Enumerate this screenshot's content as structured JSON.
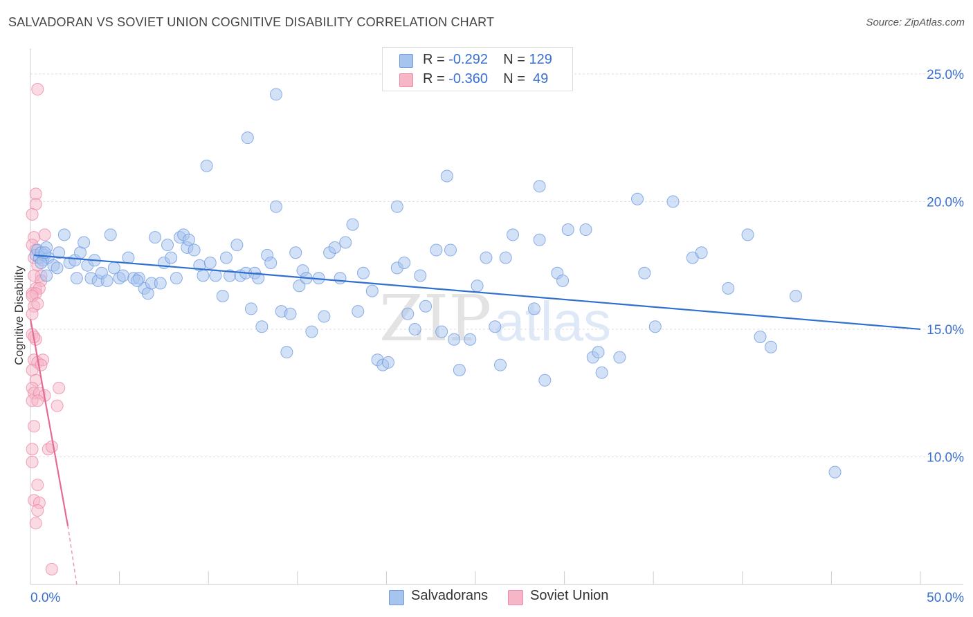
{
  "title": "SALVADORAN VS SOVIET UNION COGNITIVE DISABILITY CORRELATION CHART",
  "source": "Source: ZipAtlas.com",
  "watermark": {
    "zip": "ZIP",
    "atlas": "atlas"
  },
  "legend": {
    "rows": [
      {
        "r_label": "R = ",
        "r_value": "-0.292",
        "n_label": "N = ",
        "n_value": "129",
        "color": "#a7c4ef",
        "border": "#6f9be0"
      },
      {
        "r_label": "R = ",
        "r_value": "-0.360",
        "n_label": "N = ",
        "n_value": " 49",
        "color": "#f6b6c8",
        "border": "#ec8aa7"
      }
    ]
  },
  "colors": {
    "blue_fill": "#a7c4ef",
    "blue_stroke": "#6f9be0",
    "blue_line": "#2f6fd0",
    "pink_fill": "#f6b6c8",
    "pink_stroke": "#ec8aa7",
    "pink_line": "#e46b96",
    "tick_label": "#3a6fd0",
    "grid": "#dddddd"
  },
  "chart_data": {
    "type": "scatter",
    "title": "SALVADORAN VS SOVIET UNION COGNITIVE DISABILITY CORRELATION CHART",
    "xlabel": "",
    "ylabel": "Cognitive Disability",
    "xlim": [
      0,
      50
    ],
    "ylim": [
      5,
      26
    ],
    "x_tick_labels": [
      "0.0%",
      "50.0%"
    ],
    "y_ticks": [
      10,
      15,
      20,
      25
    ],
    "y_tick_labels": [
      "10.0%",
      "15.0%",
      "20.0%",
      "25.0%"
    ],
    "grid": true,
    "legend_position": "top-center",
    "series": [
      {
        "name": "Salvadorans",
        "r": -0.292,
        "n": 129,
        "trend": {
          "x": [
            0.2,
            50
          ],
          "y": [
            17.9,
            15.0
          ]
        },
        "points": [
          [
            0.3,
            17.9
          ],
          [
            0.4,
            18.1
          ],
          [
            0.5,
            17.8
          ],
          [
            0.6,
            18.0
          ],
          [
            0.7,
            17.7
          ],
          [
            0.8,
            17.9
          ],
          [
            0.9,
            17.1
          ],
          [
            1.0,
            17.8
          ],
          [
            1.3,
            17.5
          ],
          [
            1.6,
            18.0
          ],
          [
            1.9,
            18.7
          ],
          [
            2.2,
            17.6
          ],
          [
            2.5,
            17.7
          ],
          [
            2.6,
            17.0
          ],
          [
            2.8,
            18.0
          ],
          [
            3.0,
            18.4
          ],
          [
            3.2,
            17.5
          ],
          [
            3.4,
            17.0
          ],
          [
            3.6,
            17.7
          ],
          [
            3.8,
            16.9
          ],
          [
            4.0,
            17.2
          ],
          [
            4.3,
            16.9
          ],
          [
            4.5,
            18.7
          ],
          [
            4.7,
            17.4
          ],
          [
            5.0,
            17.0
          ],
          [
            5.2,
            17.1
          ],
          [
            5.5,
            17.8
          ],
          [
            5.8,
            17.0
          ],
          [
            6.1,
            17.0
          ],
          [
            6.4,
            16.6
          ],
          [
            6.6,
            16.4
          ],
          [
            6.8,
            16.8
          ],
          [
            7.0,
            18.6
          ],
          [
            7.3,
            16.8
          ],
          [
            7.5,
            17.6
          ],
          [
            7.7,
            18.3
          ],
          [
            7.9,
            17.8
          ],
          [
            8.2,
            17.0
          ],
          [
            8.4,
            18.6
          ],
          [
            8.6,
            18.7
          ],
          [
            8.8,
            18.2
          ],
          [
            8.9,
            18.5
          ],
          [
            9.2,
            18.1
          ],
          [
            9.5,
            17.5
          ],
          [
            9.7,
            17.1
          ],
          [
            10.1,
            17.6
          ],
          [
            10.4,
            17.1
          ],
          [
            10.8,
            16.3
          ],
          [
            11.0,
            17.8
          ],
          [
            11.2,
            17.1
          ],
          [
            11.6,
            18.3
          ],
          [
            11.8,
            17.1
          ],
          [
            12.1,
            17.2
          ],
          [
            12.4,
            15.8
          ],
          [
            12.6,
            17.2
          ],
          [
            12.8,
            17.0
          ],
          [
            13.0,
            15.1
          ],
          [
            13.3,
            17.9
          ],
          [
            13.5,
            17.6
          ],
          [
            13.8,
            19.8
          ],
          [
            14.1,
            15.7
          ],
          [
            14.4,
            14.1
          ],
          [
            14.6,
            15.6
          ],
          [
            14.9,
            18.0
          ],
          [
            15.1,
            16.7
          ],
          [
            15.3,
            17.3
          ],
          [
            15.5,
            17.0
          ],
          [
            15.8,
            14.9
          ],
          [
            16.2,
            17.0
          ],
          [
            16.5,
            15.5
          ],
          [
            16.8,
            18.0
          ],
          [
            17.1,
            18.2
          ],
          [
            17.4,
            17.0
          ],
          [
            17.7,
            18.4
          ],
          [
            18.1,
            19.1
          ],
          [
            18.4,
            15.7
          ],
          [
            18.7,
            17.2
          ],
          [
            19.2,
            16.5
          ],
          [
            19.5,
            13.8
          ],
          [
            19.8,
            13.6
          ],
          [
            20.1,
            13.7
          ],
          [
            20.6,
            17.4
          ],
          [
            21.0,
            17.6
          ],
          [
            21.2,
            15.6
          ],
          [
            21.6,
            15.0
          ],
          [
            21.9,
            17.1
          ],
          [
            22.2,
            15.9
          ],
          [
            22.8,
            18.1
          ],
          [
            23.1,
            14.9
          ],
          [
            23.6,
            18.1
          ],
          [
            23.8,
            14.6
          ],
          [
            24.1,
            13.4
          ],
          [
            24.7,
            14.6
          ],
          [
            25.1,
            16.7
          ],
          [
            25.6,
            17.8
          ],
          [
            26.1,
            15.1
          ],
          [
            26.4,
            13.6
          ],
          [
            26.7,
            17.8
          ],
          [
            27.1,
            18.7
          ],
          [
            28.3,
            15.8
          ],
          [
            28.6,
            18.5
          ],
          [
            28.9,
            13.0
          ],
          [
            29.6,
            17.2
          ],
          [
            29.9,
            16.9
          ],
          [
            30.2,
            18.9
          ],
          [
            31.2,
            18.9
          ],
          [
            31.6,
            13.9
          ],
          [
            31.9,
            14.1
          ],
          [
            32.1,
            13.3
          ],
          [
            33.1,
            13.9
          ],
          [
            34.1,
            20.1
          ],
          [
            34.5,
            17.2
          ],
          [
            35.1,
            15.1
          ],
          [
            36.1,
            20.0
          ],
          [
            37.2,
            17.8
          ],
          [
            37.7,
            18.0
          ],
          [
            39.2,
            16.6
          ],
          [
            40.3,
            18.7
          ],
          [
            41.0,
            14.7
          ],
          [
            41.6,
            14.3
          ],
          [
            43.0,
            16.3
          ],
          [
            45.2,
            9.4
          ],
          [
            0.9,
            18.2
          ],
          [
            0.6,
            17.6
          ],
          [
            6.0,
            16.9
          ],
          [
            9.9,
            21.4
          ],
          [
            12.2,
            22.5
          ],
          [
            13.8,
            24.2
          ],
          [
            20.6,
            19.8
          ],
          [
            23.4,
            21.0
          ],
          [
            28.6,
            20.6
          ],
          [
            0.8,
            18.0
          ],
          [
            1.5,
            17.4
          ]
        ]
      },
      {
        "name": "Soviet Union",
        "r": -0.36,
        "n": 49,
        "trend": {
          "x": [
            0.0,
            2.1
          ],
          "y": [
            15.4,
            7.3
          ]
        },
        "trend_extension": {
          "x": [
            2.1,
            2.6
          ],
          "y": [
            7.3,
            5.0
          ]
        },
        "points": [
          [
            0.4,
            24.4
          ],
          [
            0.3,
            20.3
          ],
          [
            0.3,
            19.9
          ],
          [
            0.1,
            19.5
          ],
          [
            0.2,
            18.6
          ],
          [
            0.1,
            18.3
          ],
          [
            0.3,
            18.1
          ],
          [
            0.2,
            17.8
          ],
          [
            0.4,
            17.5
          ],
          [
            0.6,
            17.1
          ],
          [
            0.2,
            17.1
          ],
          [
            0.6,
            16.9
          ],
          [
            0.3,
            16.6
          ],
          [
            0.5,
            16.6
          ],
          [
            0.1,
            16.4
          ],
          [
            0.3,
            16.4
          ],
          [
            0.1,
            16.3
          ],
          [
            0.2,
            15.9
          ],
          [
            0.1,
            15.6
          ],
          [
            0.1,
            14.8
          ],
          [
            0.3,
            14.6
          ],
          [
            0.2,
            13.8
          ],
          [
            0.4,
            13.7
          ],
          [
            0.7,
            13.8
          ],
          [
            0.1,
            13.4
          ],
          [
            0.3,
            13.0
          ],
          [
            0.1,
            12.7
          ],
          [
            0.2,
            12.5
          ],
          [
            0.5,
            12.5
          ],
          [
            0.8,
            12.4
          ],
          [
            0.1,
            12.2
          ],
          [
            0.4,
            12.2
          ],
          [
            0.2,
            11.2
          ],
          [
            0.1,
            10.3
          ],
          [
            1.0,
            10.3
          ],
          [
            1.2,
            10.4
          ],
          [
            1.6,
            12.7
          ],
          [
            1.5,
            12.0
          ],
          [
            0.1,
            9.8
          ],
          [
            0.4,
            8.9
          ],
          [
            0.2,
            8.3
          ],
          [
            0.5,
            8.2
          ],
          [
            0.4,
            7.9
          ],
          [
            0.3,
            7.4
          ],
          [
            1.2,
            5.6
          ],
          [
            0.8,
            18.7
          ],
          [
            0.6,
            13.6
          ],
          [
            0.2,
            14.7
          ],
          [
            0.4,
            16.0
          ]
        ]
      }
    ]
  },
  "bottom_legend": [
    {
      "label": "Salvadorans",
      "color": "#a7c4ef",
      "border": "#6f9be0"
    },
    {
      "label": "Soviet Union",
      "color": "#f6b6c8",
      "border": "#ec8aa7"
    }
  ]
}
